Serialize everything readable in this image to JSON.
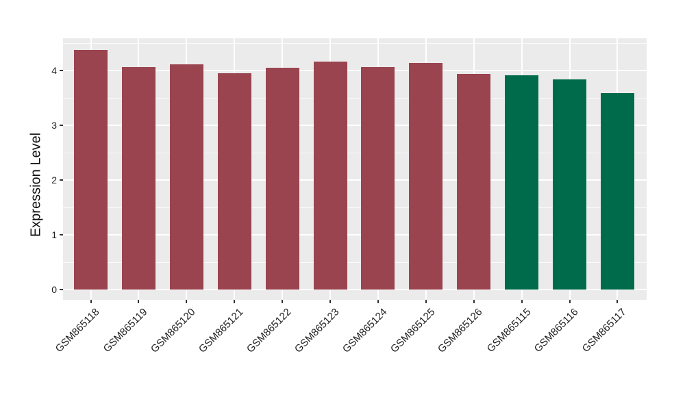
{
  "chart_data": {
    "type": "bar",
    "title": "",
    "xlabel": "",
    "ylabel": "Expression Level",
    "categories": [
      "GSM865118",
      "GSM865119",
      "GSM865120",
      "GSM865121",
      "GSM865122",
      "GSM865123",
      "GSM865124",
      "GSM865125",
      "GSM865126",
      "GSM865115",
      "GSM865116",
      "GSM865117"
    ],
    "values": [
      4.38,
      4.07,
      4.12,
      3.95,
      4.06,
      4.17,
      4.07,
      4.14,
      3.94,
      3.92,
      3.84,
      3.59
    ],
    "bar_colors": [
      "#9A4450",
      "#9A4450",
      "#9A4450",
      "#9A4450",
      "#9A4450",
      "#9A4450",
      "#9A4450",
      "#9A4450",
      "#9A4450",
      "#006B4A",
      "#006B4A",
      "#006B4A"
    ],
    "group_colors": {
      "maroon_group": "#9A4450",
      "green_group": "#006B4A"
    },
    "ylim": [
      0,
      4.6
    ],
    "yticks": [
      0,
      1,
      2,
      3,
      4
    ],
    "yminorticks": [
      0.5,
      1.5,
      2.5,
      3.5,
      4.5
    ],
    "grid": "on",
    "legend": "none",
    "panel_background": "#EBEBEB",
    "grid_color": "#FFFFFF",
    "outer_background": "#FFFFFF",
    "tick_color": "#333333",
    "x_label_rotation_deg": 45
  }
}
